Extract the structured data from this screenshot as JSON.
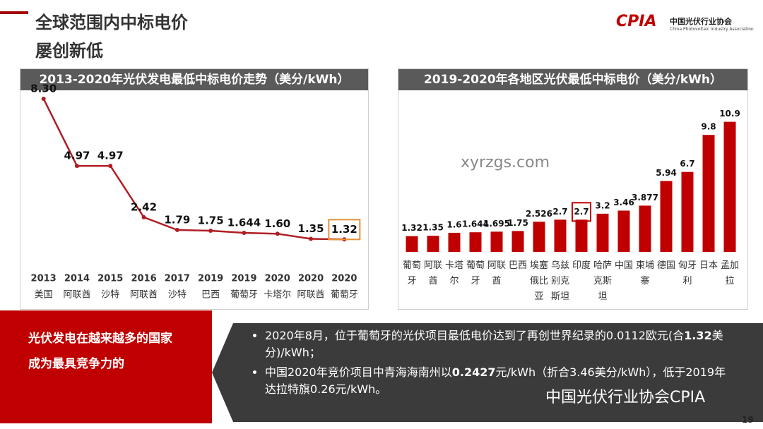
{
  "header": {
    "title_lines": [
      "全球范围内中标电价",
      "屡创新低"
    ],
    "logo": "CPIA",
    "org_name": "中国光伏行业协会",
    "org_name_en": "China Photovoltaic Industry Association"
  },
  "chart_data": [
    {
      "type": "line",
      "title": "2013-2020年光伏发电最低中标电价走势（美分/kWh）",
      "categories": [
        "2013",
        "2014",
        "2015",
        "2016",
        "2017",
        "2019",
        "2019",
        "2020",
        "2020",
        "2020"
      ],
      "subcategories": [
        "美国",
        "阿联酋",
        "沙特",
        "阿联酋",
        "沙特",
        "巴西",
        "葡萄牙",
        "卡塔尔",
        "阿联酋",
        "葡萄牙"
      ],
      "values": [
        8.3,
        4.97,
        4.97,
        2.42,
        1.79,
        1.75,
        1.644,
        1.6,
        1.35,
        1.32
      ],
      "value_labels": [
        "8.30",
        "4.97",
        "4.97",
        "2.42",
        "1.79",
        "1.75",
        "1.644",
        "1.60",
        "1.35",
        "1.32"
      ],
      "color": "#b01e23",
      "ylim": [
        0,
        9
      ],
      "highlight": {
        "index": 9,
        "color": "#e69138"
      }
    },
    {
      "type": "bar",
      "title": "2019-2020年各地区光伏最低中标电价（美分/kWh）",
      "categories": [
        "葡萄牙",
        "阿联酋",
        "卡塔尔",
        "葡萄牙",
        "阿联酋",
        "巴西",
        "埃塞俄比亚",
        "乌兹别克斯坦",
        "印度",
        "哈萨克斯坦",
        "中国",
        "柬埔寨",
        "德国",
        "匈牙利",
        "日本",
        "孟加拉"
      ],
      "values": [
        1.32,
        1.35,
        1.6,
        1.644,
        1.695,
        1.75,
        2.526,
        2.7,
        2.7,
        3.2,
        3.46,
        3.877,
        5.94,
        6.7,
        9.8,
        10.9
      ],
      "color": "#c00000",
      "ylim": [
        0,
        12
      ],
      "highlight": {
        "index": 8,
        "color": "#c00000"
      }
    }
  ],
  "callout": "光伏发电在越来越多的国家成为最具竞争力的",
  "bullets": [
    [
      {
        "text": "2020年8月，位于葡萄牙的光伏项目最低电价达到了再创世界纪录的0.0112欧元(合"
      },
      {
        "text": "1.32",
        "bold": true
      },
      {
        "text": "美分)/kWh；"
      }
    ],
    [
      {
        "text": "中国2020年竞价项目中青海海南州以"
      },
      {
        "text": "0.2427",
        "bold": true
      },
      {
        "text": "元/kWh（折合3.46美分/kWh），低于2019年达拉特旗0.26元/kWh。"
      }
    ]
  ],
  "watermarks": [
    "xyrzgs.com",
    "中国光伏行业协会CPIA"
  ],
  "page_number": "19"
}
